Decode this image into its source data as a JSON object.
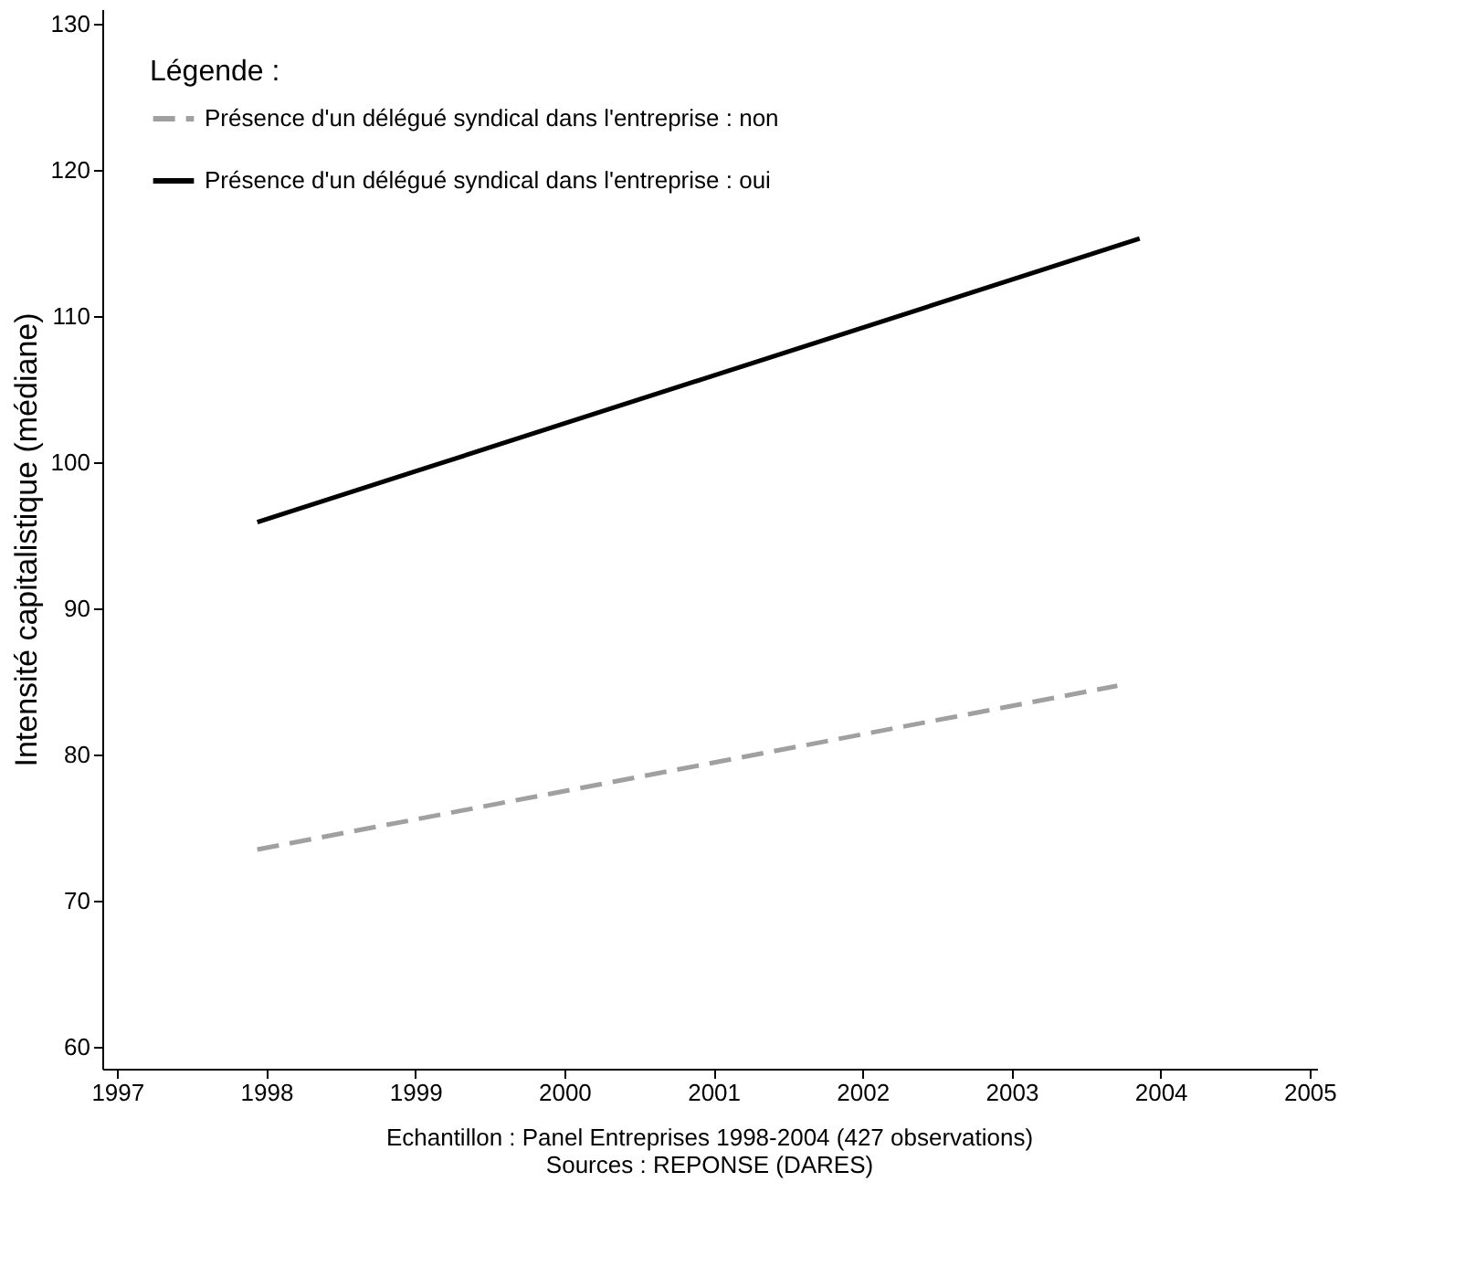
{
  "chart_data": {
    "type": "line",
    "ylabel": "Intensité capitalistique (médiane)",
    "legend_title": "Légende :",
    "legend": "top left",
    "grid": false,
    "marker": "none",
    "xlim": [
      1996.9,
      2005.05
    ],
    "xticks": [
      1997,
      1998,
      1999,
      2000,
      2001,
      2002,
      2003,
      2004,
      2005
    ],
    "ylim": [
      58.5,
      131
    ],
    "yticks": [
      60,
      70,
      80,
      90,
      100,
      110,
      120,
      130
    ],
    "series": [
      {
        "name": "Présence d'un délégué syndical dans l'entreprise : non",
        "color": "#a0a0a0",
        "line_style": "dashed",
        "x": [
          1997.94,
          2003.71
        ],
        "values": [
          73.5,
          84.7
        ]
      },
      {
        "name": "Présence d'un délégué syndical dans l'entreprise : oui",
        "color": "#000000",
        "line_style": "solid",
        "x": [
          1997.94,
          2003.86
        ],
        "values": [
          95.9,
          115.3
        ]
      }
    ],
    "annotations": [
      "Echantillon : Panel Entreprises 1998-2004 (427 observations)",
      "Sources : REPONSE (DARES)"
    ]
  }
}
